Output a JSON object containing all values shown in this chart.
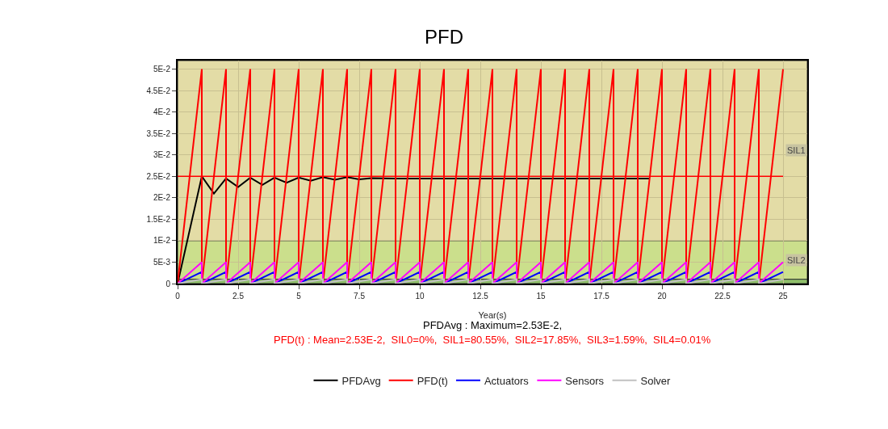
{
  "chart_data": {
    "type": "line",
    "title": "PFD",
    "xlabel": "Year(s)",
    "x": [
      0,
      1,
      1,
      2,
      2,
      3,
      3,
      4,
      4,
      5,
      5,
      6,
      6,
      7,
      7,
      8,
      8,
      9,
      9,
      10,
      10,
      11,
      11,
      12,
      12,
      13,
      13,
      14,
      14,
      15,
      15,
      16,
      16,
      17,
      17,
      18,
      18,
      19,
      19,
      20,
      20,
      21,
      21,
      22,
      22,
      23,
      23,
      24,
      24,
      25
    ],
    "series": [
      {
        "name": "PFDAvg",
        "color": "#000000",
        "x": [
          0,
          1,
          1.5,
          2,
          2.5,
          3,
          3.5,
          4,
          4.5,
          5,
          5.5,
          6,
          6.5,
          7,
          7.5,
          8,
          9,
          10,
          12,
          15,
          19.5
        ],
        "values": [
          0,
          0.025,
          0.021,
          0.0245,
          0.0225,
          0.0247,
          0.023,
          0.0247,
          0.0235,
          0.0247,
          0.024,
          0.0248,
          0.0242,
          0.0248,
          0.0243,
          0.0246,
          0.0245,
          0.0245,
          0.0245,
          0.0245,
          0.0245
        ]
      },
      {
        "name": "PFD(t)",
        "color": "#ff0000",
        "values": [
          0,
          0.05,
          0,
          0.05,
          0,
          0.05,
          0,
          0.05,
          0,
          0.05,
          0,
          0.05,
          0,
          0.05,
          0,
          0.05,
          0,
          0.05,
          0,
          0.05,
          0,
          0.05,
          0,
          0.05,
          0,
          0.05,
          0,
          0.05,
          0,
          0.05,
          0,
          0.05,
          0,
          0.05,
          0,
          0.05,
          0,
          0.05,
          0,
          0.05,
          0,
          0.05,
          0,
          0.05,
          0,
          0.05,
          0,
          0.05,
          0,
          0.05
        ]
      },
      {
        "name": "Actuators",
        "color": "#0000ff",
        "values": [
          0,
          0.0027,
          0,
          0.0027,
          0,
          0.0027,
          0,
          0.0027,
          0,
          0.0027,
          0,
          0.0027,
          0,
          0.0027,
          0,
          0.0027,
          0,
          0.0027,
          0,
          0.0027,
          0,
          0.0027,
          0,
          0.0027,
          0,
          0.0027,
          0,
          0.0027,
          0,
          0.0027,
          0,
          0.0027,
          0,
          0.0027,
          0,
          0.0027,
          0,
          0.0027,
          0,
          0.0027,
          0,
          0.0027,
          0,
          0.0027,
          0,
          0.0027,
          0,
          0.0027,
          0,
          0.0027
        ]
      },
      {
        "name": "Sensors",
        "color": "#ff00ff",
        "values": [
          0,
          0.005,
          0,
          0.005,
          0,
          0.005,
          0,
          0.005,
          0,
          0.005,
          0,
          0.005,
          0,
          0.005,
          0,
          0.005,
          0,
          0.005,
          0,
          0.005,
          0,
          0.005,
          0,
          0.005,
          0,
          0.005,
          0,
          0.005,
          0,
          0.005,
          0,
          0.005,
          0,
          0.005,
          0,
          0.005,
          0,
          0.005,
          0,
          0.005,
          0,
          0.005,
          0,
          0.005,
          0,
          0.005,
          0,
          0.005,
          0,
          0.005
        ]
      },
      {
        "name": "Solver",
        "color": "#c0c0c0",
        "values": [
          0,
          0.001,
          0,
          0.001,
          0,
          0.001,
          0,
          0.001,
          0,
          0.001,
          0,
          0.001,
          0,
          0.001,
          0,
          0.001,
          0,
          0.001,
          0,
          0.001,
          0,
          0.001,
          0,
          0.001,
          0,
          0.001,
          0,
          0.001,
          0,
          0.001,
          0,
          0.001,
          0,
          0.001,
          0,
          0.001,
          0,
          0.001,
          0,
          0.001,
          0,
          0.001,
          0,
          0.001,
          0,
          0.001,
          0,
          0.001,
          0,
          0.001
        ]
      }
    ],
    "xlim": [
      0,
      26
    ],
    "xticks": [
      0,
      2.5,
      5,
      7.5,
      10,
      12.5,
      15,
      17.5,
      20,
      22.5,
      25
    ],
    "ylim": [
      0,
      0.052
    ],
    "yticks": [
      {
        "value": 0,
        "label": "0"
      },
      {
        "value": 0.005,
        "label": "5E-3"
      },
      {
        "value": 0.01,
        "label": "1E-2"
      },
      {
        "value": 0.015,
        "label": "1.5E-2"
      },
      {
        "value": 0.02,
        "label": "2E-2"
      },
      {
        "value": 0.025,
        "label": "2.5E-2"
      },
      {
        "value": 0.03,
        "label": "3E-2"
      },
      {
        "value": 0.035,
        "label": "3.5E-2"
      },
      {
        "value": 0.04,
        "label": "4E-2"
      },
      {
        "value": 0.045,
        "label": "4.5E-2"
      },
      {
        "value": 0.05,
        "label": "5E-2"
      }
    ],
    "bands": [
      {
        "axis": "y",
        "from": 0.01,
        "to": 0.052,
        "label": "SIL1",
        "color": "#e3dca6"
      },
      {
        "axis": "y",
        "from": 0.001,
        "to": 0.01,
        "label": "SIL2",
        "color": "#cbdf8c"
      },
      {
        "axis": "y",
        "from": 0,
        "to": 0.001,
        "label": null,
        "color": "#8fbf6a"
      }
    ],
    "ref_lines": [
      {
        "axis": "y",
        "value": 0.025,
        "label": null,
        "color": "#ff0000"
      }
    ],
    "annotations": [
      "PFDAvg : Maximum=2.53E-2,",
      "PFD(t) : Mean=2.53E-2,  SIL0=0%,  SIL1=80.55%,  SIL2=17.85%,  SIL3=1.59%,  SIL4=0.01%"
    ],
    "grid": true,
    "legend": "bottom",
    "marker": "none",
    "line_style": "solid"
  }
}
